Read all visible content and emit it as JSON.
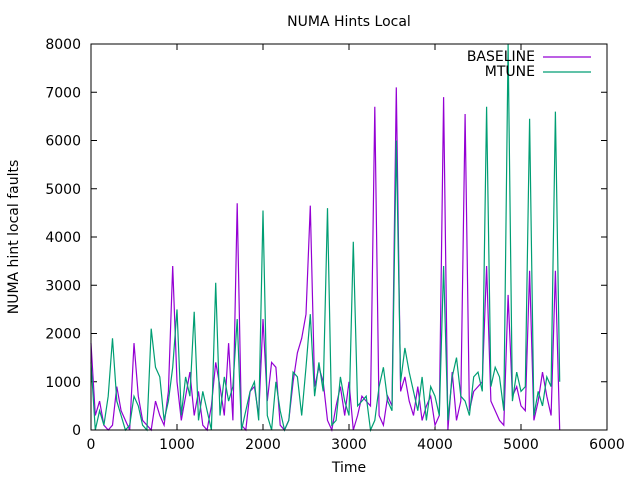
{
  "chart_data": {
    "type": "line",
    "title": "NUMA Hints Local",
    "xlabel": "Time",
    "ylabel": "NUMA hint local faults",
    "xlim": [
      0,
      6000
    ],
    "ylim": [
      0,
      8000
    ],
    "xticks": [
      0,
      1000,
      2000,
      3000,
      4000,
      5000,
      6000
    ],
    "yticks": [
      0,
      1000,
      2000,
      3000,
      4000,
      5000,
      6000,
      7000,
      8000
    ],
    "grid": false,
    "legend_position": "top-right",
    "x_start": 0,
    "x_step": 50,
    "series": [
      {
        "name": "BASELINE",
        "color": "#9400d3",
        "values": [
          1800,
          300,
          600,
          100,
          0,
          100,
          900,
          400,
          200,
          0,
          1800,
          700,
          200,
          100,
          0,
          600,
          300,
          100,
          800,
          3400,
          1000,
          200,
          700,
          1200,
          300,
          800,
          100,
          0,
          500,
          1400,
          900,
          300,
          1800,
          200,
          4700,
          100,
          0,
          800,
          900,
          300,
          2300,
          600,
          1400,
          1300,
          100,
          0,
          200,
          1000,
          1600,
          1900,
          2400,
          4650,
          900,
          1300,
          1000,
          200,
          0,
          500,
          900,
          300,
          1000,
          0,
          300,
          700,
          600,
          500,
          6700,
          300,
          100,
          700,
          500,
          7100,
          800,
          1100,
          600,
          300,
          900,
          200,
          500,
          700,
          100,
          300,
          6900,
          0,
          1200,
          200,
          600,
          6550,
          400,
          800,
          900,
          1000,
          3400,
          600,
          400,
          200,
          100,
          2800,
          700,
          900,
          500,
          400,
          3300,
          200,
          600,
          1200,
          700,
          300,
          3300,
          0
        ]
      },
      {
        "name": "MTUNE",
        "color": "#009e73",
        "values": [
          1400,
          0,
          400,
          100,
          700,
          1900,
          600,
          300,
          0,
          100,
          700,
          500,
          100,
          0,
          2100,
          1300,
          1100,
          200,
          600,
          1300,
          2500,
          300,
          1100,
          700,
          2450,
          200,
          800,
          400,
          0,
          3050,
          300,
          1100,
          600,
          900,
          2300,
          0,
          400,
          800,
          1000,
          200,
          4550,
          300,
          0,
          1000,
          400,
          0,
          200,
          1200,
          1100,
          300,
          1300,
          2400,
          700,
          1400,
          800,
          4600,
          100,
          200,
          1100,
          600,
          300,
          3900,
          500,
          600,
          700,
          0,
          200,
          900,
          1300,
          600,
          400,
          6000,
          1000,
          1700,
          1200,
          800,
          400,
          1100,
          200,
          900,
          700,
          300,
          3400,
          200,
          1100,
          1500,
          700,
          600,
          300,
          1100,
          1200,
          800,
          6700,
          900,
          1300,
          1100,
          400,
          8000,
          600,
          1200,
          800,
          900,
          6450,
          300,
          800,
          500,
          1100,
          900,
          6600,
          1000
        ]
      }
    ]
  }
}
